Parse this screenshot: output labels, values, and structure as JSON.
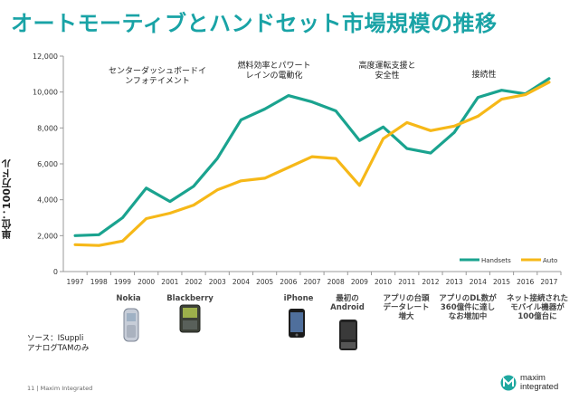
{
  "title": "オートモーティブとハンドセット市場規模の推移",
  "ylabel": "単位：100万ドル",
  "chart_data": {
    "type": "line",
    "x": [
      "1997",
      "1998",
      "1999",
      "2000",
      "2001",
      "2002",
      "2003",
      "2004",
      "2005",
      "2006",
      "2007",
      "2008",
      "2009",
      "2010",
      "2011",
      "2012",
      "2013",
      "2014",
      "2015",
      "2016",
      "2017"
    ],
    "ylim": [
      0,
      12000
    ],
    "yticks": [
      "0",
      "2,000",
      "4,000",
      "6,000",
      "8,000",
      "10,000",
      "12,000"
    ],
    "grid": false,
    "legend_position": "lower-right",
    "series": [
      {
        "name": "Handsets",
        "color": "#1aa38f",
        "values": [
          2000,
          2050,
          3000,
          4650,
          3900,
          4750,
          6300,
          8450,
          9050,
          9800,
          9450,
          8950,
          7300,
          8050,
          6850,
          6600,
          7750,
          9700,
          10100,
          9900,
          10750
        ]
      },
      {
        "name": "Auto",
        "color": "#f6b818",
        "values": [
          1500,
          1450,
          1700,
          2950,
          3250,
          3700,
          4550,
          5050,
          5200,
          5800,
          6400,
          6300,
          4800,
          7400,
          8300,
          7850,
          8100,
          8650,
          9600,
          9850,
          10550
        ]
      }
    ]
  },
  "annotations": [
    "センターダッシュボードイ\nンフォテイメント",
    "燃料効率とパワート\nレインの電動化",
    "高度運転支援と\n安全性",
    "接続性"
  ],
  "phones": [
    "Nokia",
    "Blackberry",
    "iPhone",
    "最初の\nAndroid",
    "アプリの台頭\nデータレート\n増大",
    "アプリのDL数が\n360億件に達し\nなお増加中",
    "ネット接続された\nモバイル機器が\n100億台に"
  ],
  "source": "ソース：ISuppli\nアナログTAMのみ",
  "footer": "11  |  Maxim Integrated",
  "logo": {
    "line1": "maxim",
    "line2": "integrated"
  }
}
